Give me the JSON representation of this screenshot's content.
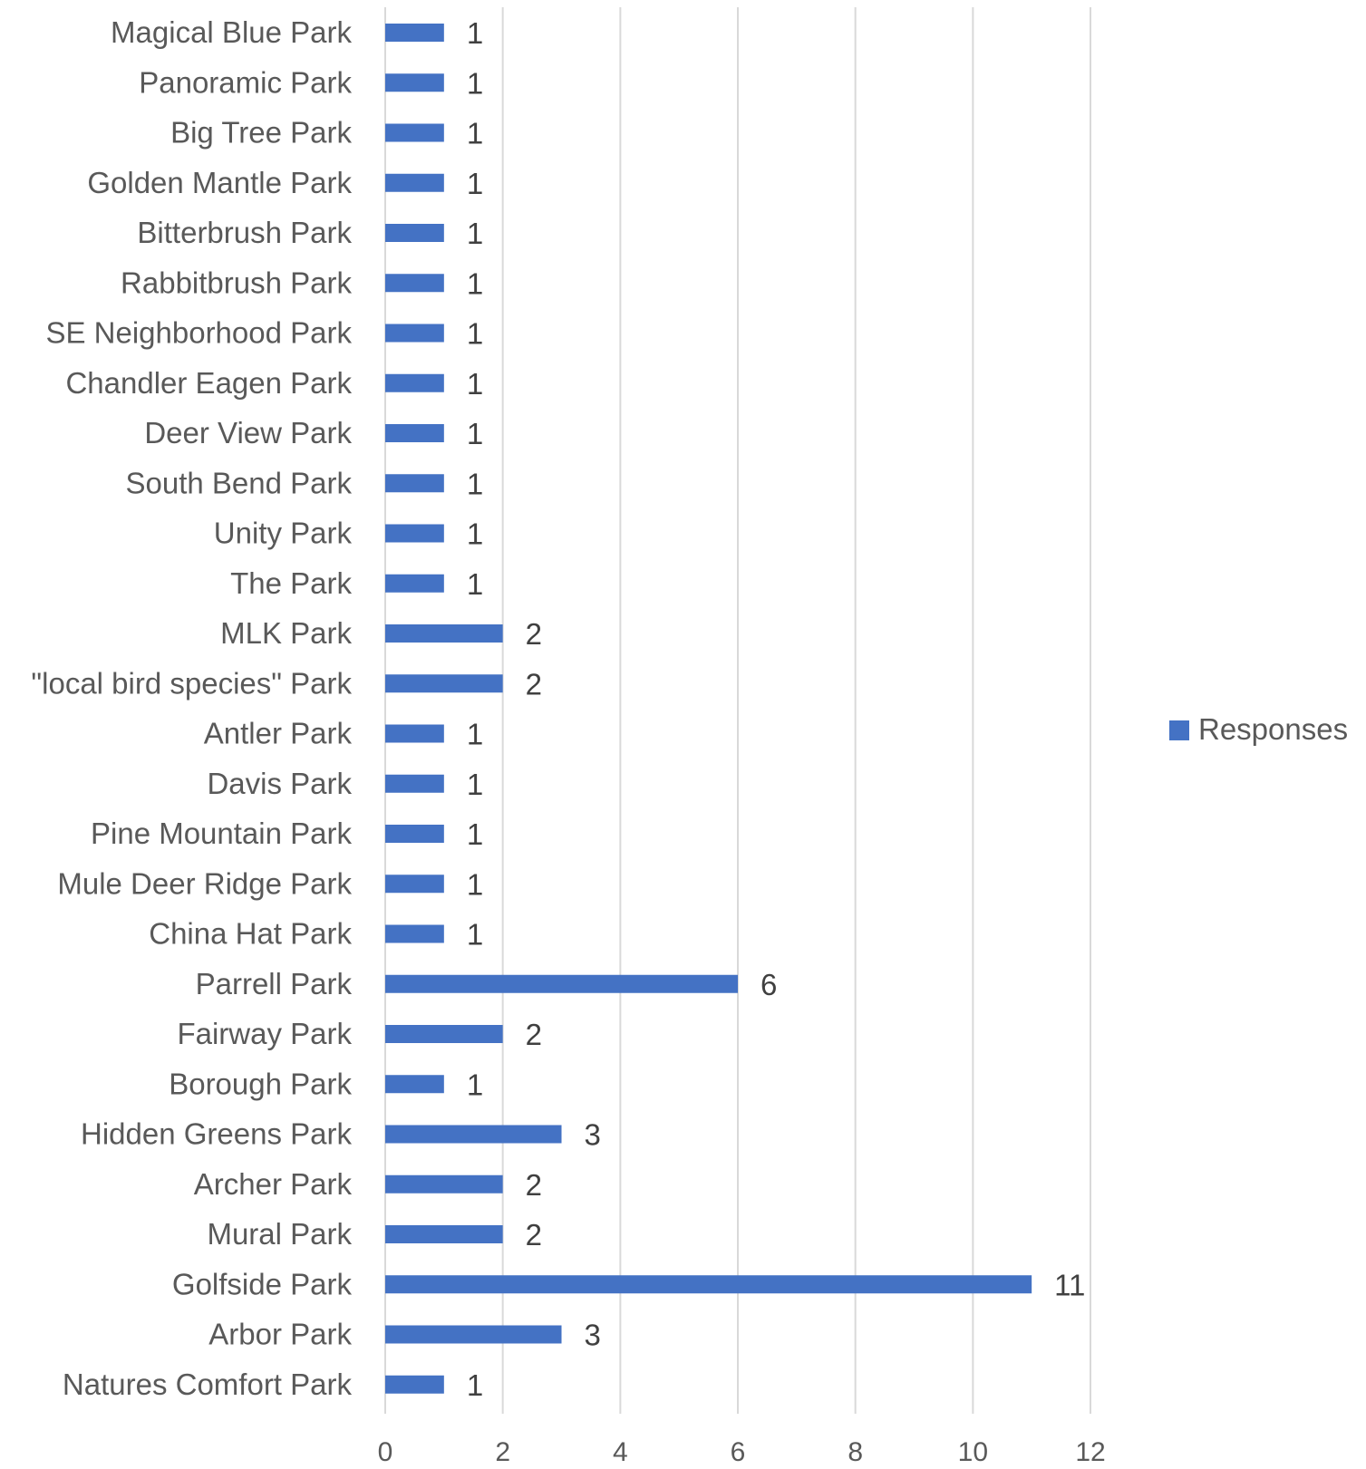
{
  "chart_data": {
    "type": "bar",
    "orientation": "horizontal",
    "categories": [
      "Magical Blue Park",
      "Panoramic Park",
      "Big Tree Park",
      "Golden Mantle Park",
      "Bitterbrush Park",
      "Rabbitbrush Park",
      "SE Neighborhood Park",
      "Chandler Eagen Park",
      "Deer View Park",
      "South Bend Park",
      "Unity Park",
      "The Park",
      "MLK Park",
      "\"local bird species\" Park",
      "Antler Park",
      "Davis Park",
      "Pine Mountain Park",
      "Mule Deer Ridge Park",
      "China Hat Park",
      "Parrell Park",
      "Fairway Park",
      "Borough Park",
      "Hidden Greens Park",
      "Archer Park",
      "Mural Park",
      "Golfside Park",
      "Arbor Park",
      "Natures Comfort Park"
    ],
    "series": [
      {
        "name": "Responses",
        "color": "#4472C4",
        "values": [
          1,
          1,
          1,
          1,
          1,
          1,
          1,
          1,
          1,
          1,
          1,
          1,
          2,
          2,
          1,
          1,
          1,
          1,
          1,
          6,
          2,
          1,
          3,
          2,
          2,
          11,
          3,
          1
        ]
      }
    ],
    "xlim": [
      0,
      12
    ],
    "xticks": [
      "0",
      "2",
      "4",
      "6",
      "8",
      "10",
      "12"
    ],
    "grid": true,
    "data_labels": true,
    "legend": {
      "position": "right",
      "entries": [
        "Responses"
      ]
    },
    "title": "",
    "xlabel": "",
    "ylabel": ""
  }
}
